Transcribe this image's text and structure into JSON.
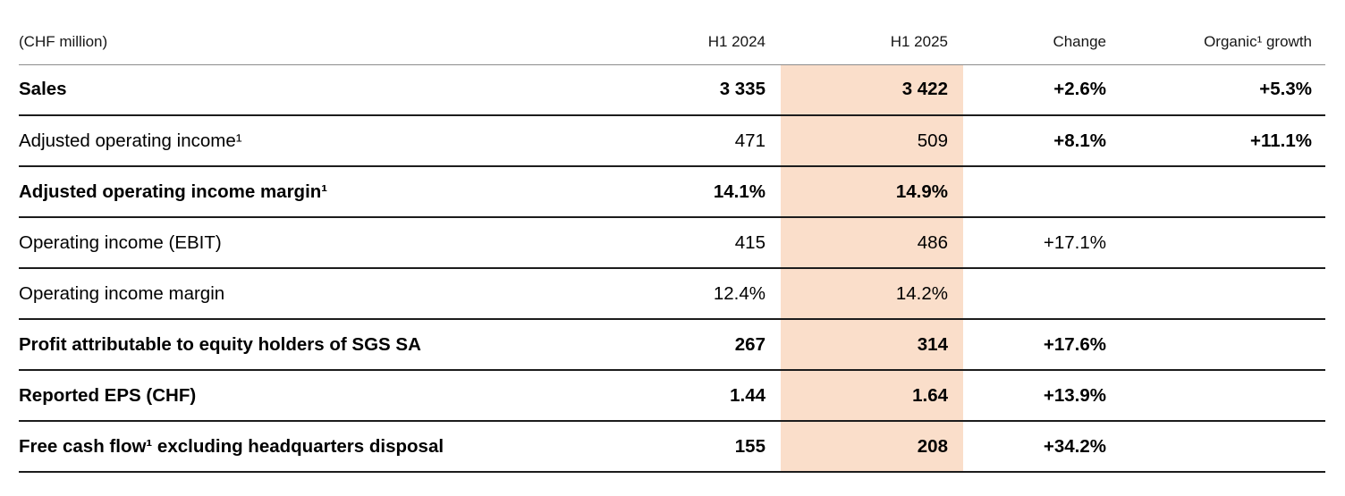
{
  "table": {
    "unit_label": "(CHF million)",
    "highlight_color": "#fadeca",
    "columns": {
      "h1_2024": "H1 2024",
      "h1_2025": "H1 2025",
      "change": "Change",
      "organic_growth": "Organic¹ growth"
    },
    "rows": [
      {
        "label": "Sales",
        "h1_2024": "3 335",
        "h1_2025": "3 422",
        "change": "+2.6%",
        "organic_growth": "+5.3%",
        "label_bold": true,
        "values_bold": true,
        "change_bold": true
      },
      {
        "label": "Adjusted operating income¹",
        "h1_2024": "471",
        "h1_2025": "509",
        "change": "+8.1%",
        "organic_growth": "+11.1%",
        "label_bold": false,
        "values_bold": false,
        "change_bold": true
      },
      {
        "label": "Adjusted operating income margin¹",
        "h1_2024": "14.1%",
        "h1_2025": "14.9%",
        "change": "",
        "organic_growth": "",
        "label_bold": true,
        "values_bold": true,
        "change_bold": true
      },
      {
        "label": "Operating income (EBIT)",
        "h1_2024": "415",
        "h1_2025": "486",
        "change": "+17.1%",
        "organic_growth": "",
        "label_bold": false,
        "values_bold": false,
        "change_bold": false
      },
      {
        "label": "Operating income margin",
        "h1_2024": "12.4%",
        "h1_2025": "14.2%",
        "change": "",
        "organic_growth": "",
        "label_bold": false,
        "values_bold": false,
        "change_bold": false
      },
      {
        "label": "Profit attributable to equity holders of SGS SA",
        "h1_2024": "267",
        "h1_2025": "314",
        "change": "+17.6%",
        "organic_growth": "",
        "label_bold": true,
        "values_bold": true,
        "change_bold": true
      },
      {
        "label": "Reported EPS (CHF)",
        "h1_2024": "1.44",
        "h1_2025": "1.64",
        "change": "+13.9%",
        "organic_growth": "",
        "label_bold": true,
        "values_bold": true,
        "change_bold": true
      },
      {
        "label": "Free cash flow¹ excluding headquarters disposal",
        "h1_2024": "155",
        "h1_2025": "208",
        "change": "+34.2%",
        "organic_growth": "",
        "label_bold": true,
        "values_bold": true,
        "change_bold": true
      }
    ]
  }
}
